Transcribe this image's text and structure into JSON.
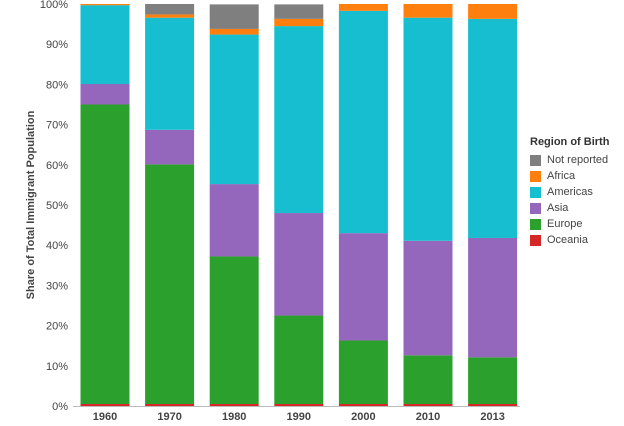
{
  "chart_data": {
    "type": "bar",
    "stacked": true,
    "categories": [
      "1960",
      "1970",
      "1980",
      "1990",
      "2000",
      "2010",
      "2013"
    ],
    "ylabel": "Share of Total Immigrant Population",
    "xlabel": "",
    "ylim": [
      0,
      100
    ],
    "yticks": [
      "0%",
      "10%",
      "20%",
      "30%",
      "40%",
      "50%",
      "60%",
      "70%",
      "80%",
      "90%",
      "100%"
    ],
    "legend_title": "Region of Birth",
    "legend_position": "right",
    "grid": false,
    "series": [
      {
        "name": "Oceania",
        "color": "#d62728",
        "values": [
          0.5,
          0.5,
          0.5,
          0.5,
          0.5,
          0.5,
          0.5
        ]
      },
      {
        "name": "Europe",
        "color": "#2ca02c",
        "values": [
          74.5,
          59.6,
          36.7,
          22.0,
          15.8,
          12.1,
          11.6
        ]
      },
      {
        "name": "Asia",
        "color": "#9467bd",
        "values": [
          5.1,
          8.6,
          18.0,
          25.5,
          26.7,
          28.5,
          29.7
        ]
      },
      {
        "name": "Americas",
        "color": "#17becf",
        "values": [
          19.6,
          27.9,
          37.2,
          46.5,
          55.3,
          55.5,
          54.5
        ]
      },
      {
        "name": "Africa",
        "color": "#ff7f0e",
        "values": [
          0.4,
          0.8,
          1.4,
          1.8,
          2.8,
          3.9,
          4.2
        ]
      },
      {
        "name": "Not reported",
        "color": "#7f7f7f",
        "values": [
          0.6,
          2.9,
          6.1,
          3.6,
          0.0,
          0.0,
          0.0
        ]
      }
    ],
    "legend_order": [
      "Not reported",
      "Africa",
      "Americas",
      "Asia",
      "Europe",
      "Oceania"
    ]
  }
}
